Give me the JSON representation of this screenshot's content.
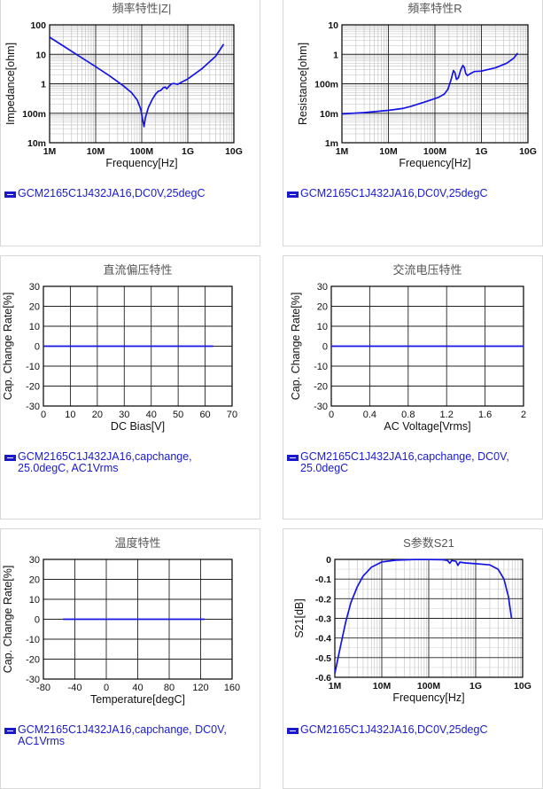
{
  "charts": [
    {
      "id": "impedance",
      "legend": "GCM2165C1J432JA16,DC0V,25degC",
      "chart_data": {
        "type": "line",
        "title": "頻率特性|Z|",
        "xlabel": "Frequency[Hz]",
        "ylabel": "Impedance[ohm]",
        "xscale": "log",
        "yscale": "log",
        "xlim": [
          1000000,
          10000000000
        ],
        "ylim": [
          0.01,
          100
        ],
        "xticks": [
          1000000,
          10000000,
          100000000,
          1000000000,
          10000000000
        ],
        "xticklabels": [
          "1M",
          "10M",
          "100M",
          "1G",
          "10G"
        ],
        "yticks": [
          0.01,
          0.1,
          1,
          10,
          100
        ],
        "yticklabels": [
          "10m",
          "100m",
          "1",
          "10",
          "100"
        ],
        "grid": true,
        "color": "#1414e6",
        "series": [
          {
            "points": [
              [
                1000000,
                38
              ],
              [
                2000000,
                19
              ],
              [
                5000000,
                7.6
              ],
              [
                10000000,
                3.8
              ],
              [
                20000000,
                1.85
              ],
              [
                40000000,
                0.85
              ],
              [
                60000000,
                0.5
              ],
              [
                80000000,
                0.28
              ],
              [
                95000000,
                0.14
              ],
              [
                105000000,
                0.06
              ],
              [
                112000000,
                0.035
              ],
              [
                120000000,
                0.07
              ],
              [
                140000000,
                0.16
              ],
              [
                170000000,
                0.3
              ],
              [
                200000000,
                0.45
              ],
              [
                230000000,
                0.56
              ],
              [
                260000000,
                0.6
              ],
              [
                290000000,
                0.72
              ],
              [
                320000000,
                0.78
              ],
              [
                350000000,
                0.68
              ],
              [
                400000000,
                0.86
              ],
              [
                450000000,
                1.0
              ],
              [
                500000000,
                1.02
              ],
              [
                600000000,
                0.96
              ],
              [
                800000000,
                1.22
              ],
              [
                1000000000,
                1.45
              ],
              [
                2000000000,
                3.2
              ],
              [
                4000000000,
                8.5
              ],
              [
                6000000000,
                22
              ]
            ]
          }
        ]
      }
    },
    {
      "id": "resistance",
      "legend": "GCM2165C1J432JA16,DC0V,25degC",
      "chart_data": {
        "type": "line",
        "title": "頻率特性R",
        "xlabel": "Frequency[Hz]",
        "ylabel": "Resistance[ohm]",
        "xscale": "log",
        "yscale": "log",
        "xlim": [
          1000000,
          10000000000
        ],
        "ylim": [
          0.001,
          10
        ],
        "xticks": [
          1000000,
          10000000,
          100000000,
          1000000000,
          10000000000
        ],
        "xticklabels": [
          "1M",
          "10M",
          "100M",
          "1G",
          "10G"
        ],
        "yticks": [
          0.001,
          0.01,
          0.1,
          1,
          10
        ],
        "yticklabels": [
          "1m",
          "10m",
          "100m",
          "1",
          "10"
        ],
        "grid": true,
        "color": "#1414e6",
        "series": [
          {
            "points": [
              [
                1000000,
                0.0095
              ],
              [
                3000000,
                0.0105
              ],
              [
                10000000,
                0.0125
              ],
              [
                20000000,
                0.0145
              ],
              [
                30000000,
                0.017
              ],
              [
                50000000,
                0.022
              ],
              [
                80000000,
                0.028
              ],
              [
                120000000,
                0.035
              ],
              [
                160000000,
                0.045
              ],
              [
                190000000,
                0.065
              ],
              [
                220000000,
                0.13
              ],
              [
                250000000,
                0.28
              ],
              [
                270000000,
                0.24
              ],
              [
                290000000,
                0.14
              ],
              [
                320000000,
                0.16
              ],
              [
                360000000,
                0.3
              ],
              [
                400000000,
                0.42
              ],
              [
                430000000,
                0.35
              ],
              [
                460000000,
                0.22
              ],
              [
                500000000,
                0.19
              ],
              [
                600000000,
                0.23
              ],
              [
                700000000,
                0.26
              ],
              [
                1000000000,
                0.27
              ],
              [
                2000000000,
                0.35
              ],
              [
                3500000000,
                0.5
              ],
              [
                5000000000,
                0.75
              ],
              [
                6000000000,
                1.1
              ]
            ]
          }
        ]
      }
    },
    {
      "id": "dcbias",
      "legend": "GCM2165C1J432JA16,capchange,\n25.0degC, AC1Vrms",
      "chart_data": {
        "type": "line",
        "title": "直流偏压特性",
        "xlabel": "DC Bias[V]",
        "ylabel": "Cap. Change Rate[%]",
        "xscale": "linear",
        "yscale": "linear",
        "xlim": [
          0,
          70
        ],
        "ylim": [
          -30,
          30
        ],
        "xticks": [
          0,
          10,
          20,
          30,
          40,
          50,
          60,
          70
        ],
        "xticklabels": [
          "0",
          "10",
          "20",
          "30",
          "40",
          "50",
          "60",
          "70"
        ],
        "yticks": [
          -30,
          -20,
          -10,
          0,
          10,
          20,
          30
        ],
        "yticklabels": [
          "-30",
          "-20",
          "-10",
          "0",
          "10",
          "20",
          "30"
        ],
        "grid": true,
        "color": "#1414e6",
        "series": [
          {
            "points": [
              [
                0,
                0
              ],
              [
                63,
                0
              ]
            ]
          }
        ]
      }
    },
    {
      "id": "acvoltage",
      "legend": "GCM2165C1J432JA16,capchange, DC0V,\n25.0degC",
      "chart_data": {
        "type": "line",
        "title": "交流电压特性",
        "xlabel": "AC Voltage[Vrms]",
        "ylabel": "Cap. Change Rate[%]",
        "xscale": "linear",
        "yscale": "linear",
        "xlim": [
          0,
          2
        ],
        "ylim": [
          -30,
          30
        ],
        "xticks": [
          0,
          0.4,
          0.8,
          1.2,
          1.6,
          2
        ],
        "xticklabels": [
          "0",
          "0.4",
          "0.8",
          "1.2",
          "1.6",
          "2"
        ],
        "yticks": [
          -30,
          -20,
          -10,
          0,
          10,
          20,
          30
        ],
        "yticklabels": [
          "-30",
          "-20",
          "-10",
          "0",
          "10",
          "20",
          "30"
        ],
        "grid": true,
        "color": "#1414e6",
        "series": [
          {
            "points": [
              [
                0,
                0
              ],
              [
                2,
                0
              ]
            ]
          }
        ]
      }
    },
    {
      "id": "temperature",
      "legend": "GCM2165C1J432JA16,capchange, DC0V,\nAC1Vrms",
      "chart_data": {
        "type": "line",
        "title": "温度特性",
        "xlabel": "Temperature[degC]",
        "ylabel": "Cap. Change Rate[%]",
        "xscale": "linear",
        "yscale": "linear",
        "xlim": [
          -80,
          160
        ],
        "ylim": [
          -30,
          30
        ],
        "xticks": [
          -80,
          -40,
          0,
          40,
          80,
          120,
          160
        ],
        "xticklabels": [
          "-80",
          "-40",
          "0",
          "40",
          "80",
          "120",
          "160"
        ],
        "yticks": [
          -30,
          -20,
          -10,
          0,
          10,
          20,
          30
        ],
        "yticklabels": [
          "-30",
          "-20",
          "-10",
          "0",
          "10",
          "20",
          "30"
        ],
        "grid": true,
        "color": "#1414e6",
        "series": [
          {
            "points": [
              [
                -55,
                0
              ],
              [
                125,
                0
              ]
            ]
          }
        ]
      }
    },
    {
      "id": "s21",
      "legend": "GCM2165C1J432JA16,DC0V,25degC",
      "chart_data": {
        "type": "line",
        "title": "S参数S21",
        "xlabel": "Frequency[Hz]",
        "ylabel": "S21[dB]",
        "xscale": "log",
        "yscale": "linear",
        "xlim": [
          1000000,
          10000000000
        ],
        "ylim": [
          -0.6,
          0
        ],
        "xticks": [
          1000000,
          10000000,
          100000000,
          1000000000,
          10000000000
        ],
        "xticklabels": [
          "1M",
          "10M",
          "100M",
          "1G",
          "10G"
        ],
        "yticks": [
          -0.6,
          -0.5,
          -0.4,
          -0.3,
          -0.2,
          -0.1,
          0
        ],
        "yticklabels": [
          "-0.6",
          "-0.5",
          "-0.4",
          "-0.3",
          "-0.2",
          "-0.1",
          "0"
        ],
        "grid": true,
        "color": "#1414e6",
        "series": [
          {
            "points": [
              [
                1000000,
                -0.58
              ],
              [
                1300000,
                -0.45
              ],
              [
                1700000,
                -0.32
              ],
              [
                2200000,
                -0.22
              ],
              [
                3000000,
                -0.14
              ],
              [
                4000000,
                -0.085
              ],
              [
                6000000,
                -0.04
              ],
              [
                10000000,
                -0.013
              ],
              [
                20000000,
                -0.004
              ],
              [
                50000000,
                -0.001
              ],
              [
                100000000,
                -0.001
              ],
              [
                200000000,
                -0.002
              ],
              [
                250000000,
                -0.005
              ],
              [
                280000000,
                -0.02
              ],
              [
                310000000,
                -0.006
              ],
              [
                380000000,
                -0.01
              ],
              [
                420000000,
                -0.03
              ],
              [
                460000000,
                -0.014
              ],
              [
                600000000,
                -0.018
              ],
              [
                1000000000,
                -0.022
              ],
              [
                2000000000,
                -0.028
              ],
              [
                3000000000,
                -0.05
              ],
              [
                4000000000,
                -0.1
              ],
              [
                5000000000,
                -0.19
              ],
              [
                5800000000,
                -0.3
              ]
            ]
          }
        ]
      }
    }
  ]
}
